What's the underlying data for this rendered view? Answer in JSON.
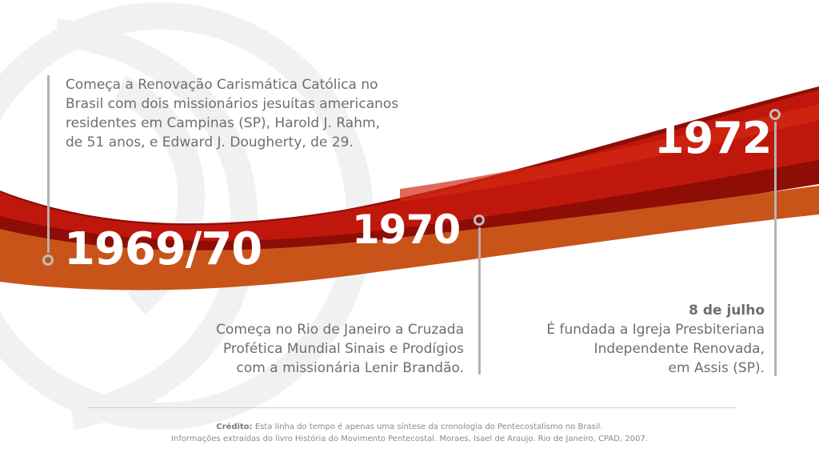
{
  "colors": {
    "background": "#ffffff",
    "wave_red": "#c0170c",
    "wave_dark_red": "#8e0d06",
    "wave_orange": "#c8541a",
    "text_gray": "#6e6e6e",
    "line_gray": "#b3b3b3"
  },
  "timeline": {
    "events": [
      {
        "year": "1969/70",
        "date": "",
        "lines": [
          "Começa a Renovação Carismática Católica no",
          "Brasil com dois missionários jesuítas americanos",
          "residentes em Campinas (SP), Harold J. Rahm,",
          "de 51 anos, e Edward J. Dougherty, de 29."
        ]
      },
      {
        "year": "1970",
        "date": "",
        "lines": [
          "Começa no Rio de Janeiro a Cruzada",
          "Profética Mundial Sinais e Prodígios",
          "com a missionária Lenir Brandão."
        ]
      },
      {
        "year": "1972",
        "date": "8 de julho",
        "lines": [
          "É fundada a Igreja Presbiteriana",
          "Independente Renovada,",
          "em Assis (SP)."
        ]
      }
    ]
  },
  "credit": {
    "label": "Crédito:",
    "line1": "Esta linha do tempo é apenas uma síntese da cronologia do Pentecostalismo no Brasil.",
    "line2": "Informações extraídas do livro História do Movimento Pentecostal. Moraes, Isael de Araujo. Rio de Janeiro, CPAD, 2007."
  },
  "icons": {
    "watermark": "swirl-watermark-icon",
    "timeline_dot": "circle-marker-icon"
  }
}
